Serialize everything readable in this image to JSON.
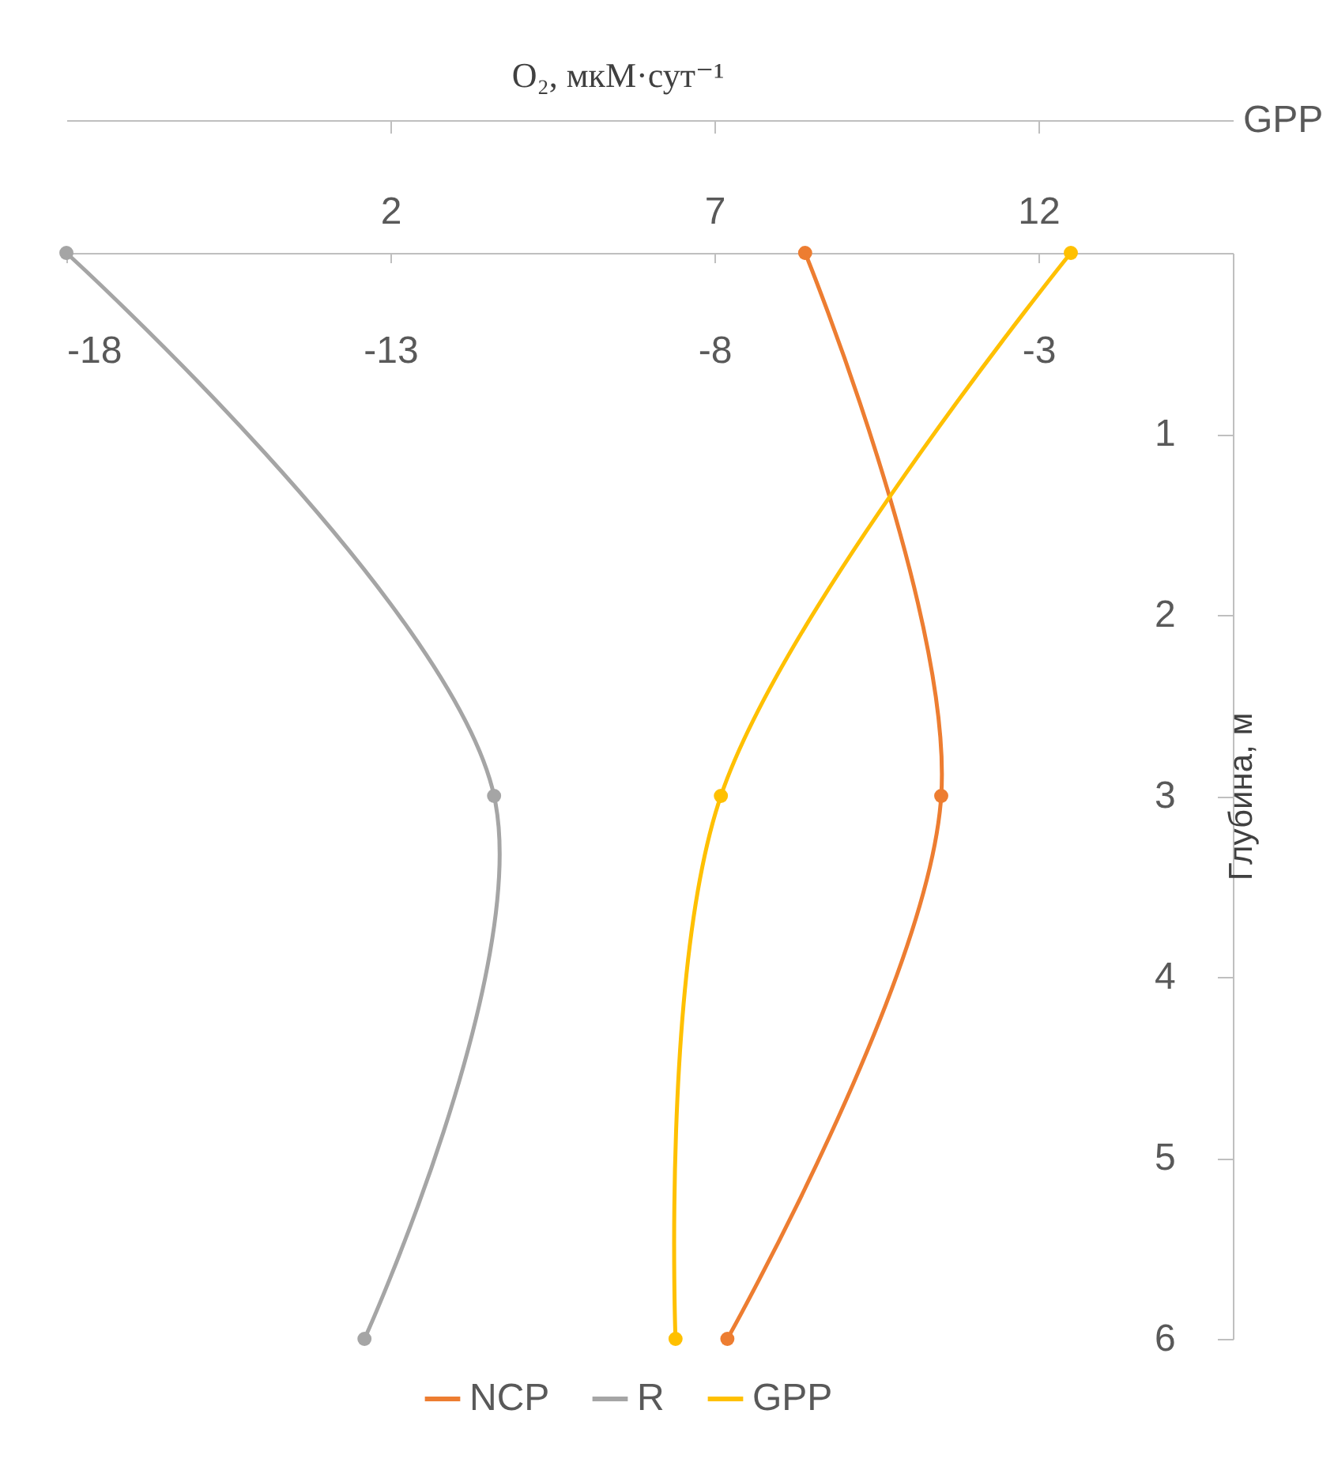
{
  "chart_data": {
    "type": "line",
    "title": "O₂, мкМ·сут⁻¹",
    "ylabel": "Глубина, м",
    "x2label": "GPP",
    "orientation": "horizontal",
    "x": [
      0,
      3,
      6
    ],
    "series": [
      {
        "name": "NCP",
        "color": "#ed7d31",
        "values": [
          -6.6,
          -4.5,
          -7.8
        ]
      },
      {
        "name": "R",
        "color": "#a5a5a5",
        "values": [
          -18,
          -11.4,
          -13.4
        ]
      },
      {
        "name": "GPP",
        "color": "#ffc000",
        "values": [
          12.5,
          7.1,
          6.4
        ],
        "axis": "x2"
      }
    ],
    "xlim": [
      -18,
      0
    ],
    "xticks": [
      -18,
      -13,
      -8,
      -3
    ],
    "x2lim": [
      -3,
      15
    ],
    "x2ticks": [
      2,
      7,
      12
    ],
    "ylim": [
      6,
      0
    ],
    "yticks": [
      1,
      2,
      3,
      4,
      5,
      6
    ],
    "marker": "circle",
    "line_style": "solid",
    "grid": false,
    "legend": "bottom"
  }
}
